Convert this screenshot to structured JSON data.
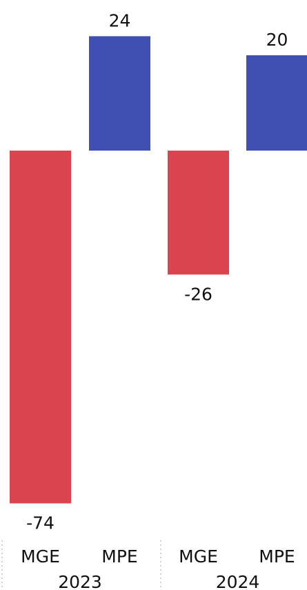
{
  "chart_data": {
    "type": "bar",
    "groups": [
      {
        "label": "2023",
        "bars": [
          {
            "category": "MGE",
            "value": -74,
            "color": "#d9444f"
          },
          {
            "category": "MPE",
            "value": 24,
            "color": "#4050b2"
          }
        ]
      },
      {
        "label": "2024",
        "bars": [
          {
            "category": "MGE",
            "value": -26,
            "color": "#d9444f"
          },
          {
            "category": "MPE",
            "value": 20,
            "color": "#4050b2"
          }
        ]
      }
    ],
    "ylim": [
      -74,
      24
    ],
    "grid": false,
    "legend": "none",
    "value_labels": true,
    "group_separators": "dotted"
  }
}
